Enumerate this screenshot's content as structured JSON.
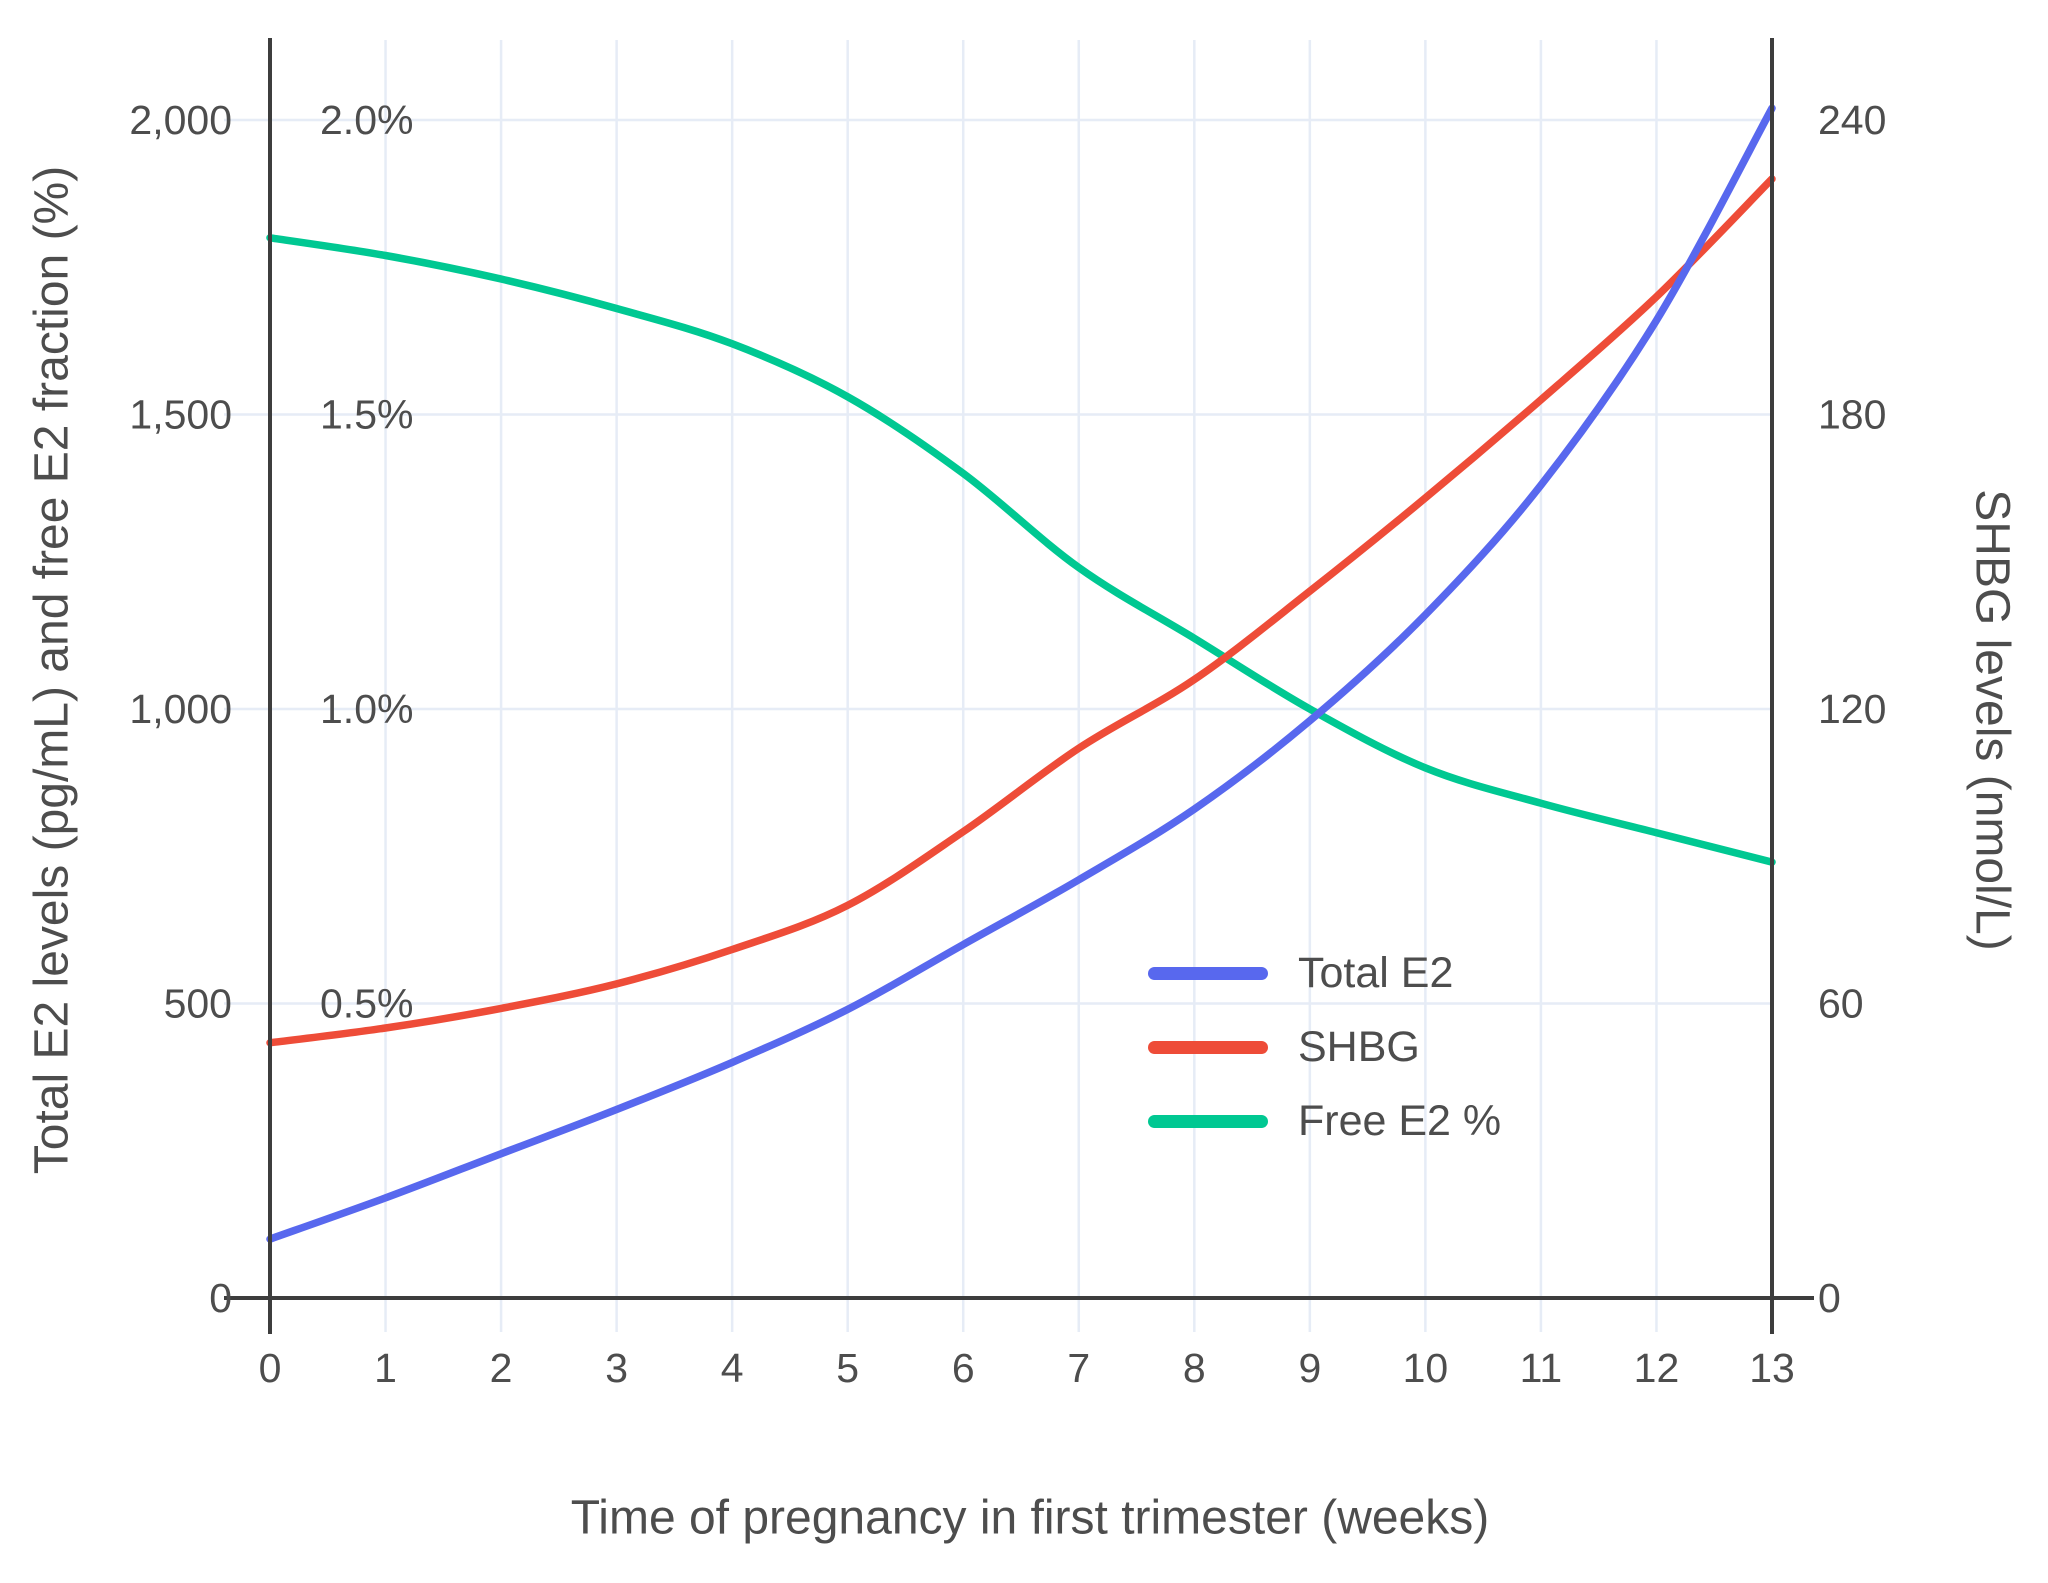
{
  "chart_data": {
    "type": "line",
    "x": [
      0,
      1,
      2,
      3,
      4,
      5,
      6,
      7,
      8,
      9,
      10,
      11,
      12,
      13
    ],
    "x_tick_labels": [
      "0",
      "1",
      "2",
      "3",
      "4",
      "5",
      "6",
      "7",
      "8",
      "9",
      "10",
      "11",
      "12",
      "13"
    ],
    "series": [
      {
        "name": "Total E2",
        "axis": "left",
        "color": "#5868EE",
        "values": [
          100,
          170,
          245,
          320,
          400,
          490,
          600,
          710,
          830,
          980,
          1160,
          1380,
          1660,
          2020
        ]
      },
      {
        "name": "SHBG",
        "axis": "right",
        "color": "#EE4C38",
        "values": [
          52,
          55,
          59,
          64,
          71,
          80,
          95,
          112,
          126,
          144,
          163,
          183,
          204,
          228
        ]
      },
      {
        "name": "Free E2 %",
        "axis": "percent",
        "color": "#00C892",
        "values": [
          1.8,
          1.77,
          1.73,
          1.68,
          1.62,
          1.53,
          1.4,
          1.24,
          1.12,
          1.0,
          0.9,
          0.84,
          0.79,
          0.74
        ]
      }
    ],
    "xlabel": "Time of pregnancy in first trimester (weeks)",
    "ylabel_left": "Total E2 levels (pg/mL) and free E2 fraction (%)",
    "ylabel_right": "SHBG levels (nmol/L)",
    "y_ticks_left": [
      {
        "value": 0,
        "label": "0"
      },
      {
        "value": 500,
        "label": "500"
      },
      {
        "value": 1000,
        "label": "1,000"
      },
      {
        "value": 1500,
        "label": "1,500"
      },
      {
        "value": 2000,
        "label": "2,000"
      }
    ],
    "y_ticks_percent": [
      {
        "value": 0.5,
        "label": "0.5%"
      },
      {
        "value": 1.0,
        "label": "1.0%"
      },
      {
        "value": 1.5,
        "label": "1.5%"
      },
      {
        "value": 2.0,
        "label": "2.0%"
      }
    ],
    "y_ticks_right": [
      {
        "value": 0,
        "label": "0"
      },
      {
        "value": 60,
        "label": "60"
      },
      {
        "value": 120,
        "label": "120"
      },
      {
        "value": 180,
        "label": "180"
      },
      {
        "value": 240,
        "label": "240"
      }
    ],
    "ylim_left": [
      0,
      2000
    ],
    "ylim_percent": [
      0,
      2.0
    ],
    "ylim_right": [
      0,
      240
    ],
    "grid": true,
    "legend_position": "inside-bottom-right",
    "grid_color": "#E6ECF6",
    "axis_line_color": "#3D3D3D",
    "text_color": "#4D4D4D"
  },
  "legend": {
    "items": [
      {
        "label": "Total E2",
        "color": "#5868EE"
      },
      {
        "label": "SHBG",
        "color": "#EE4C38"
      },
      {
        "label": "Free E2 %",
        "color": "#00C892"
      }
    ]
  }
}
